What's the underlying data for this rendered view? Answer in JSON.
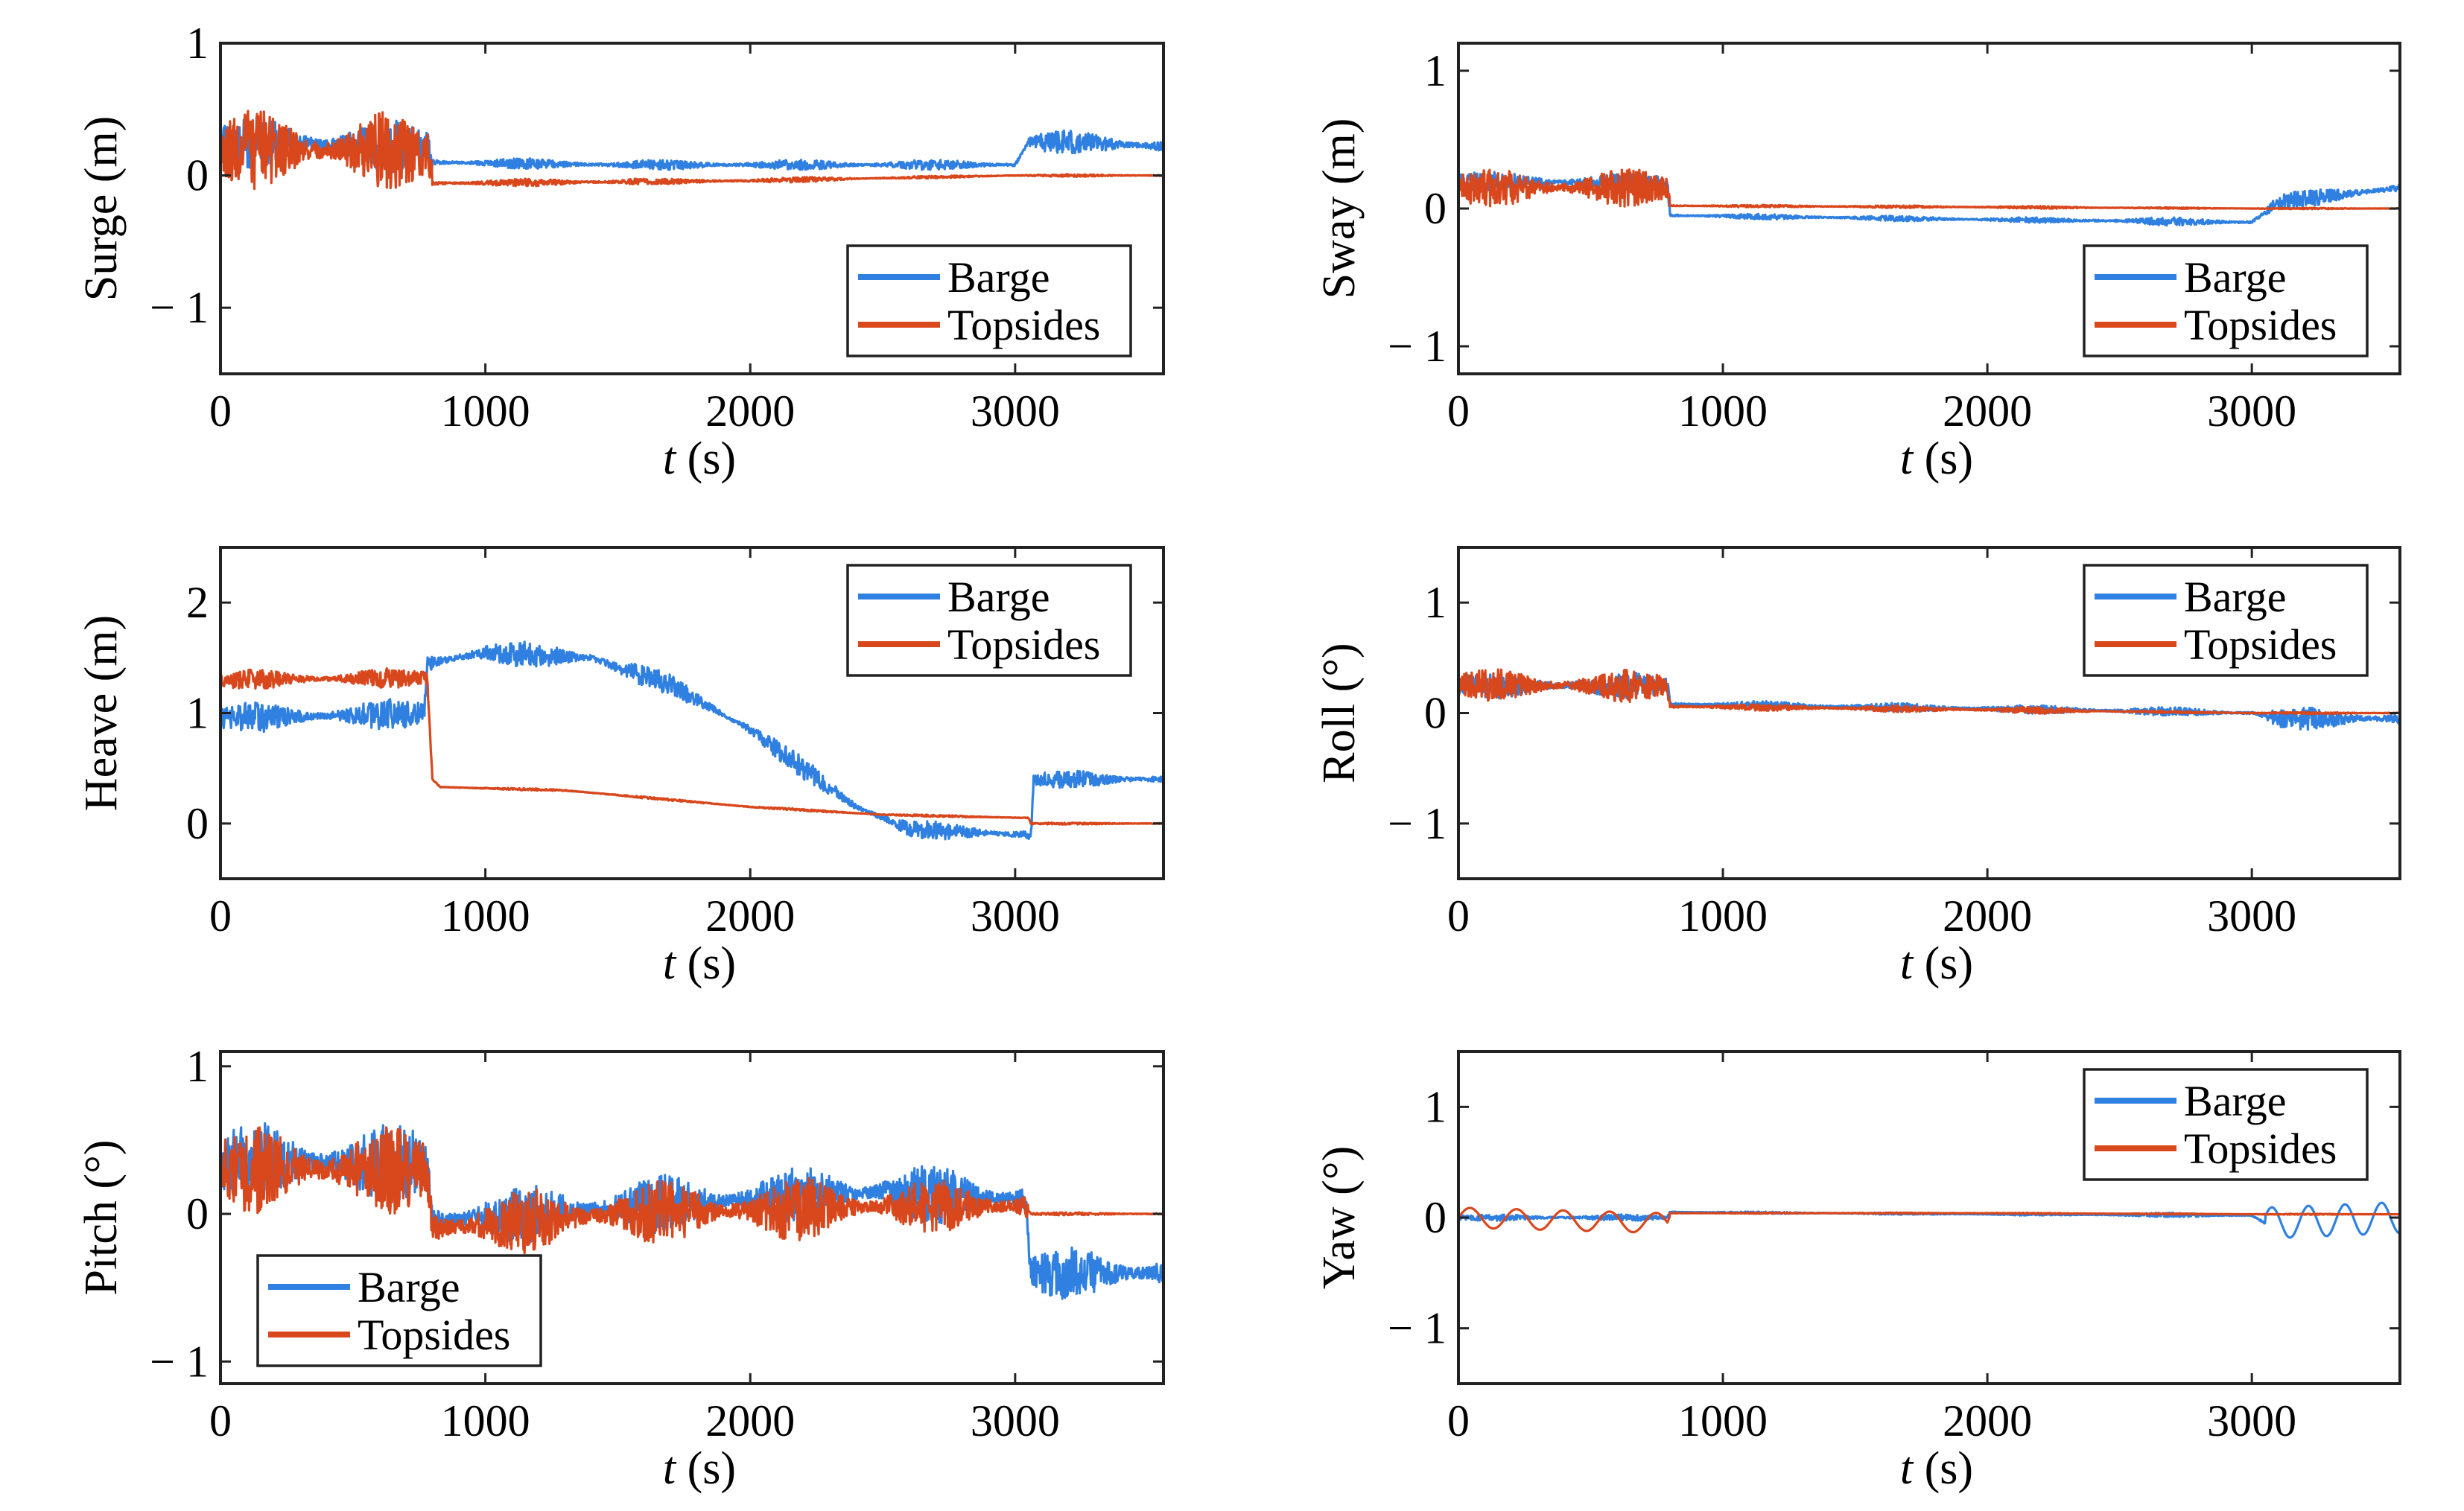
{
  "colors": {
    "barge": "#2f80e0",
    "topsides": "#d9471c",
    "axis": "#222222"
  },
  "chart_data": [
    {
      "type": "line",
      "ylabel": "Surge (m)",
      "xlabel_var": "t",
      "xlabel_unit": " (s)",
      "xlim": [
        0,
        3560
      ],
      "ylim": [
        -1.5,
        1
      ],
      "xticks": [
        0,
        1000,
        2000,
        3000
      ],
      "yticks": [
        -1,
        0,
        1
      ],
      "xtick_labels": [
        "0",
        "1000",
        "2000",
        "3000"
      ],
      "ytick_labels": [
        "− 1",
        "0",
        "1"
      ],
      "legend": "bottom-right",
      "series": [
        {
          "name": "Barge",
          "points": [
            [
              0,
              0.25
            ],
            [
              780,
              0.22
            ],
            [
              800,
              0.1
            ],
            [
              1500,
              0.08
            ],
            [
              2500,
              0.08
            ],
            [
              3000,
              0.08
            ],
            [
              3050,
              0.25
            ],
            [
              3200,
              0.25
            ],
            [
              3560,
              0.22
            ]
          ],
          "noise": [
            0.2,
            0.04,
            0.04,
            0.04,
            0.09
          ]
        },
        {
          "name": "Topsides",
          "points": [
            [
              0,
              0.2
            ],
            [
              780,
              0.18
            ],
            [
              800,
              -0.06
            ],
            [
              2000,
              -0.04
            ],
            [
              3000,
              0.0
            ],
            [
              3560,
              0.0
            ]
          ],
          "noise": [
            0.3,
            0.03,
            0.02,
            0.01,
            0.01
          ]
        }
      ]
    },
    {
      "type": "line",
      "ylabel": "Sway (m)",
      "xlabel_var": "t",
      "xlabel_unit": " (s)",
      "xlim": [
        0,
        3560
      ],
      "ylim": [
        -1.2,
        1.2
      ],
      "xticks": [
        0,
        1000,
        2000,
        3000
      ],
      "yticks": [
        -1,
        0,
        1
      ],
      "xtick_labels": [
        "0",
        "1000",
        "2000",
        "3000"
      ],
      "ytick_labels": [
        "− 1",
        "0",
        "1"
      ],
      "legend": "bottom-right",
      "series": [
        {
          "name": "Barge",
          "points": [
            [
              0,
              0.2
            ],
            [
              790,
              0.18
            ],
            [
              800,
              -0.05
            ],
            [
              2000,
              -0.08
            ],
            [
              3000,
              -0.1
            ],
            [
              3100,
              0.05
            ],
            [
              3560,
              0.15
            ]
          ],
          "noise": [
            0.08,
            0.02,
            0.02,
            0.03,
            0.06
          ]
        },
        {
          "name": "Topsides",
          "points": [
            [
              0,
              0.15
            ],
            [
              790,
              0.15
            ],
            [
              800,
              0.02
            ],
            [
              2000,
              0.01
            ],
            [
              3000,
              0.0
            ],
            [
              3560,
              0.0
            ]
          ],
          "noise": [
            0.14,
            0.01,
            0.01,
            0.005,
            0.005
          ]
        }
      ]
    },
    {
      "type": "line",
      "ylabel": "Heave (m)",
      "xlabel_var": "t",
      "xlabel_unit": " (s)",
      "xlim": [
        0,
        3560
      ],
      "ylim": [
        -0.5,
        2.5
      ],
      "xticks": [
        0,
        1000,
        2000,
        3000
      ],
      "yticks": [
        0,
        1,
        2
      ],
      "xtick_labels": [
        "0",
        "1000",
        "2000",
        "3000"
      ],
      "ytick_labels": [
        "0",
        "1",
        "2"
      ],
      "legend": "top-right",
      "series": [
        {
          "name": "Barge",
          "points": [
            [
              0,
              0.95
            ],
            [
              770,
              1.0
            ],
            [
              780,
              1.45
            ],
            [
              1000,
              1.55
            ],
            [
              1400,
              1.5
            ],
            [
              1700,
              1.25
            ],
            [
              2000,
              0.85
            ],
            [
              2200,
              0.5
            ],
            [
              2400,
              0.15
            ],
            [
              2600,
              -0.05
            ],
            [
              3000,
              -0.1
            ],
            [
              3060,
              -0.1
            ],
            [
              3070,
              0.4
            ],
            [
              3560,
              0.4
            ]
          ],
          "noise": [
            0.14,
            0.12,
            0.1,
            0.08,
            0.08
          ]
        },
        {
          "name": "Topsides",
          "points": [
            [
              0,
              1.3
            ],
            [
              780,
              1.32
            ],
            [
              800,
              0.4
            ],
            [
              830,
              0.33
            ],
            [
              1300,
              0.3
            ],
            [
              2000,
              0.15
            ],
            [
              2500,
              0.08
            ],
            [
              3050,
              0.05
            ],
            [
              3060,
              0.0
            ],
            [
              3560,
              0.0
            ]
          ],
          "noise": [
            0.09,
            0.01,
            0.01,
            0.01,
            0.01
          ]
        }
      ]
    },
    {
      "type": "line",
      "ylabel": "Roll (°)",
      "xlabel_var": "t",
      "xlabel_unit": " (s)",
      "xlim": [
        0,
        3560
      ],
      "ylim": [
        -1.5,
        1.5
      ],
      "xticks": [
        0,
        1000,
        2000,
        3000
      ],
      "yticks": [
        -1,
        0,
        1
      ],
      "xtick_labels": [
        "0",
        "1000",
        "2000",
        "3000"
      ],
      "ytick_labels": [
        "− 1",
        "0",
        "1"
      ],
      "legend": "top-right",
      "series": [
        {
          "name": "Barge",
          "points": [
            [
              0,
              0.25
            ],
            [
              790,
              0.25
            ],
            [
              800,
              0.08
            ],
            [
              2000,
              0.04
            ],
            [
              3000,
              0.0
            ],
            [
              3100,
              -0.05
            ],
            [
              3560,
              -0.05
            ]
          ],
          "noise": [
            0.12,
            0.04,
            0.04,
            0.04,
            0.1
          ]
        },
        {
          "name": "Topsides",
          "points": [
            [
              0,
              0.25
            ],
            [
              790,
              0.25
            ],
            [
              800,
              0.06
            ],
            [
              2000,
              0.03
            ],
            [
              3000,
              0.0
            ],
            [
              3560,
              0.0
            ]
          ],
          "noise": [
            0.15,
            0.03,
            0.03,
            0.01,
            0.01
          ]
        }
      ]
    },
    {
      "type": "line",
      "ylabel": "Pitch (°)",
      "xlabel_var": "t",
      "xlabel_unit": " (s)",
      "xlim": [
        0,
        3560
      ],
      "ylim": [
        -1.15,
        1.1
      ],
      "xticks": [
        0,
        1000,
        2000,
        3000
      ],
      "yticks": [
        -1,
        0,
        1
      ],
      "xtick_labels": [
        "0",
        "1000",
        "2000",
        "3000"
      ],
      "ytick_labels": [
        "− 1",
        "0",
        "1"
      ],
      "legend": "bottom-left",
      "series": [
        {
          "name": "Barge",
          "points": [
            [
              0,
              0.35
            ],
            [
              780,
              0.35
            ],
            [
              800,
              -0.05
            ],
            [
              1500,
              0.05
            ],
            [
              2500,
              0.15
            ],
            [
              3000,
              0.1
            ],
            [
              3040,
              0.1
            ],
            [
              3060,
              -0.4
            ],
            [
              3560,
              -0.4
            ]
          ],
          "noise": [
            0.28,
            0.2,
            0.2,
            0.2,
            0.18
          ]
        },
        {
          "name": "Topsides",
          "points": [
            [
              0,
              0.3
            ],
            [
              780,
              0.3
            ],
            [
              800,
              -0.1
            ],
            [
              1500,
              0.0
            ],
            [
              2500,
              0.05
            ],
            [
              3040,
              0.05
            ],
            [
              3060,
              0.0
            ],
            [
              3560,
              0.0
            ]
          ],
          "noise": [
            0.3,
            0.22,
            0.22,
            0.18,
            0.01
          ]
        }
      ]
    },
    {
      "type": "line",
      "ylabel": "Yaw (°)",
      "xlabel_var": "t",
      "xlabel_unit": " (s)",
      "xlim": [
        0,
        3560
      ],
      "ylim": [
        -1.5,
        1.5
      ],
      "xticks": [
        0,
        1000,
        2000,
        3000
      ],
      "yticks": [
        -1,
        0,
        1
      ],
      "xtick_labels": [
        "0",
        "1000",
        "2000",
        "3000"
      ],
      "ytick_labels": [
        "− 1",
        "0",
        "1"
      ],
      "legend": "top-right",
      "series": [
        {
          "name": "Barge",
          "points": [
            [
              0,
              0.0
            ],
            [
              790,
              0.0
            ],
            [
              800,
              0.05
            ],
            [
              2000,
              0.03
            ],
            [
              3000,
              0.02
            ],
            [
              3050,
              -0.05
            ],
            [
              3560,
              0.0
            ]
          ],
          "noise": [
            0.03,
            0.01,
            0.01,
            0.02,
            0.03
          ]
        },
        {
          "name": "Topsides",
          "points": [
            [
              0,
              0.0
            ],
            [
              790,
              -0.05
            ],
            [
              800,
              0.04
            ],
            [
              2000,
              0.04
            ],
            [
              3000,
              0.03
            ],
            [
              3560,
              0.03
            ]
          ],
          "noise": [
            0.03,
            0.005,
            0.005,
            0.005,
            0.005
          ]
        }
      ]
    }
  ]
}
